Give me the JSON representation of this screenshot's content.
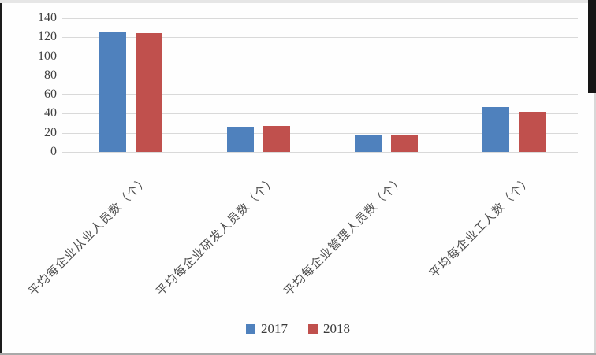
{
  "chart_data": {
    "type": "bar",
    "title": "",
    "xlabel": "",
    "ylabel": "",
    "categories": [
      "平均每企业从业人员数（个）",
      "平均每企业研发人员数（个）",
      "平均每企业管理人员数（个）",
      "平均每企业工人数（个）"
    ],
    "series": [
      {
        "name": "2017",
        "color": "#4F81BD",
        "values": [
          125,
          26,
          18,
          47
        ]
      },
      {
        "name": "2018",
        "color": "#C0504D",
        "values": [
          124,
          27,
          18,
          42
        ]
      }
    ],
    "ylim": [
      0,
      140
    ],
    "yticks": [
      0,
      20,
      40,
      60,
      80,
      100,
      120,
      140
    ],
    "grid": true,
    "legend_position": "bottom",
    "gridline_color": "#d9d9d9",
    "tick_label_color": "#3f3f3f",
    "category_label_color": "#4d4d4d"
  }
}
